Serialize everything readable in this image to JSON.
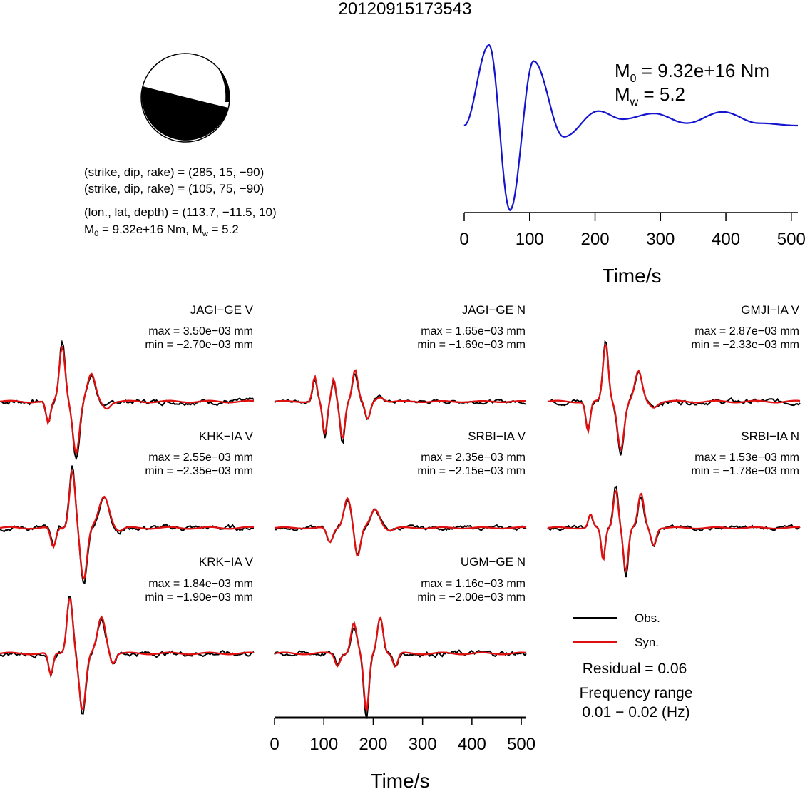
{
  "title": "20120915173543",
  "colors": {
    "observed": "#000000",
    "synthetic": "#e01010",
    "stf": "#1515d0"
  },
  "focal_mechanism": {
    "icon": "beachball-icon",
    "plane1": "(strike, dip, rake) = (285, 15, −90)",
    "plane2": "(strike, dip, rake) = (105, 75, −90)",
    "location": "(lon., lat, depth) = (113.7, −11.5, 10)",
    "moment_prefix": "M",
    "moment_sub": "0",
    "moment_mid": " = 9.32e+16 Nm, M",
    "moment_sub2": "w",
    "moment_suffix": " = 5.2"
  },
  "source_time_function": {
    "m0_prefix": "M",
    "m0_sub": "0",
    "m0_text": " = 9.32e+16 Nm",
    "mw_prefix": "M",
    "mw_sub": "w",
    "mw_text": " = 5.2",
    "xlabel": "Time/s",
    "xticks": [
      "0",
      "100",
      "200",
      "300",
      "400",
      "500"
    ]
  },
  "stations": [
    {
      "name": "JAGI−GE V",
      "max": "max = 3.50e−03 mm",
      "min": "min = −2.70e−03 mm"
    },
    {
      "name": "JAGI−GE N",
      "max": "max = 1.65e−03 mm",
      "min": "min = −1.69e−03 mm"
    },
    {
      "name": "GMJI−IA V",
      "max": "max = 2.87e−03 mm",
      "min": "min = −2.33e−03 mm"
    },
    {
      "name": "KHK−IA V",
      "max": "max = 2.55e−03 mm",
      "min": "min = −2.35e−03 mm"
    },
    {
      "name": "SRBI−IA V",
      "max": "max = 2.35e−03 mm",
      "min": "min = −2.15e−03 mm"
    },
    {
      "name": "SRBI−IA N",
      "max": "max = 1.53e−03 mm",
      "min": "min = −1.78e−03 mm"
    },
    {
      "name": "KRK−IA V",
      "max": "max = 1.84e−03 mm",
      "min": "min = −1.90e−03 mm"
    },
    {
      "name": "UGM−GE N",
      "max": "max = 1.16e−03 mm",
      "min": "min = −2.00e−03 mm"
    }
  ],
  "waveform_axis": {
    "xlabel": "Time/s",
    "xticks": [
      "0",
      "100",
      "200",
      "300",
      "400",
      "500"
    ]
  },
  "legend": {
    "observed": "Obs.",
    "synthetic": "Syn."
  },
  "residual": "Residual = 0.06",
  "frequency_label": "Frequency range",
  "frequency_value": "0.01 − 0.02 (Hz)",
  "chart_data": {
    "type": "line",
    "title": "20120915173543",
    "xlabel": "Time/s",
    "xlim": [
      0,
      510
    ],
    "stf_peaks": [
      [
        0,
        0
      ],
      [
        38,
        1.0
      ],
      [
        70,
        -1.05
      ],
      [
        106,
        0.8
      ],
      [
        152,
        -0.14
      ],
      [
        205,
        0.18
      ],
      [
        242,
        0.08
      ],
      [
        290,
        0.15
      ],
      [
        340,
        0.03
      ],
      [
        395,
        0.17
      ],
      [
        450,
        0.03
      ],
      [
        510,
        0.0
      ]
    ]
  }
}
